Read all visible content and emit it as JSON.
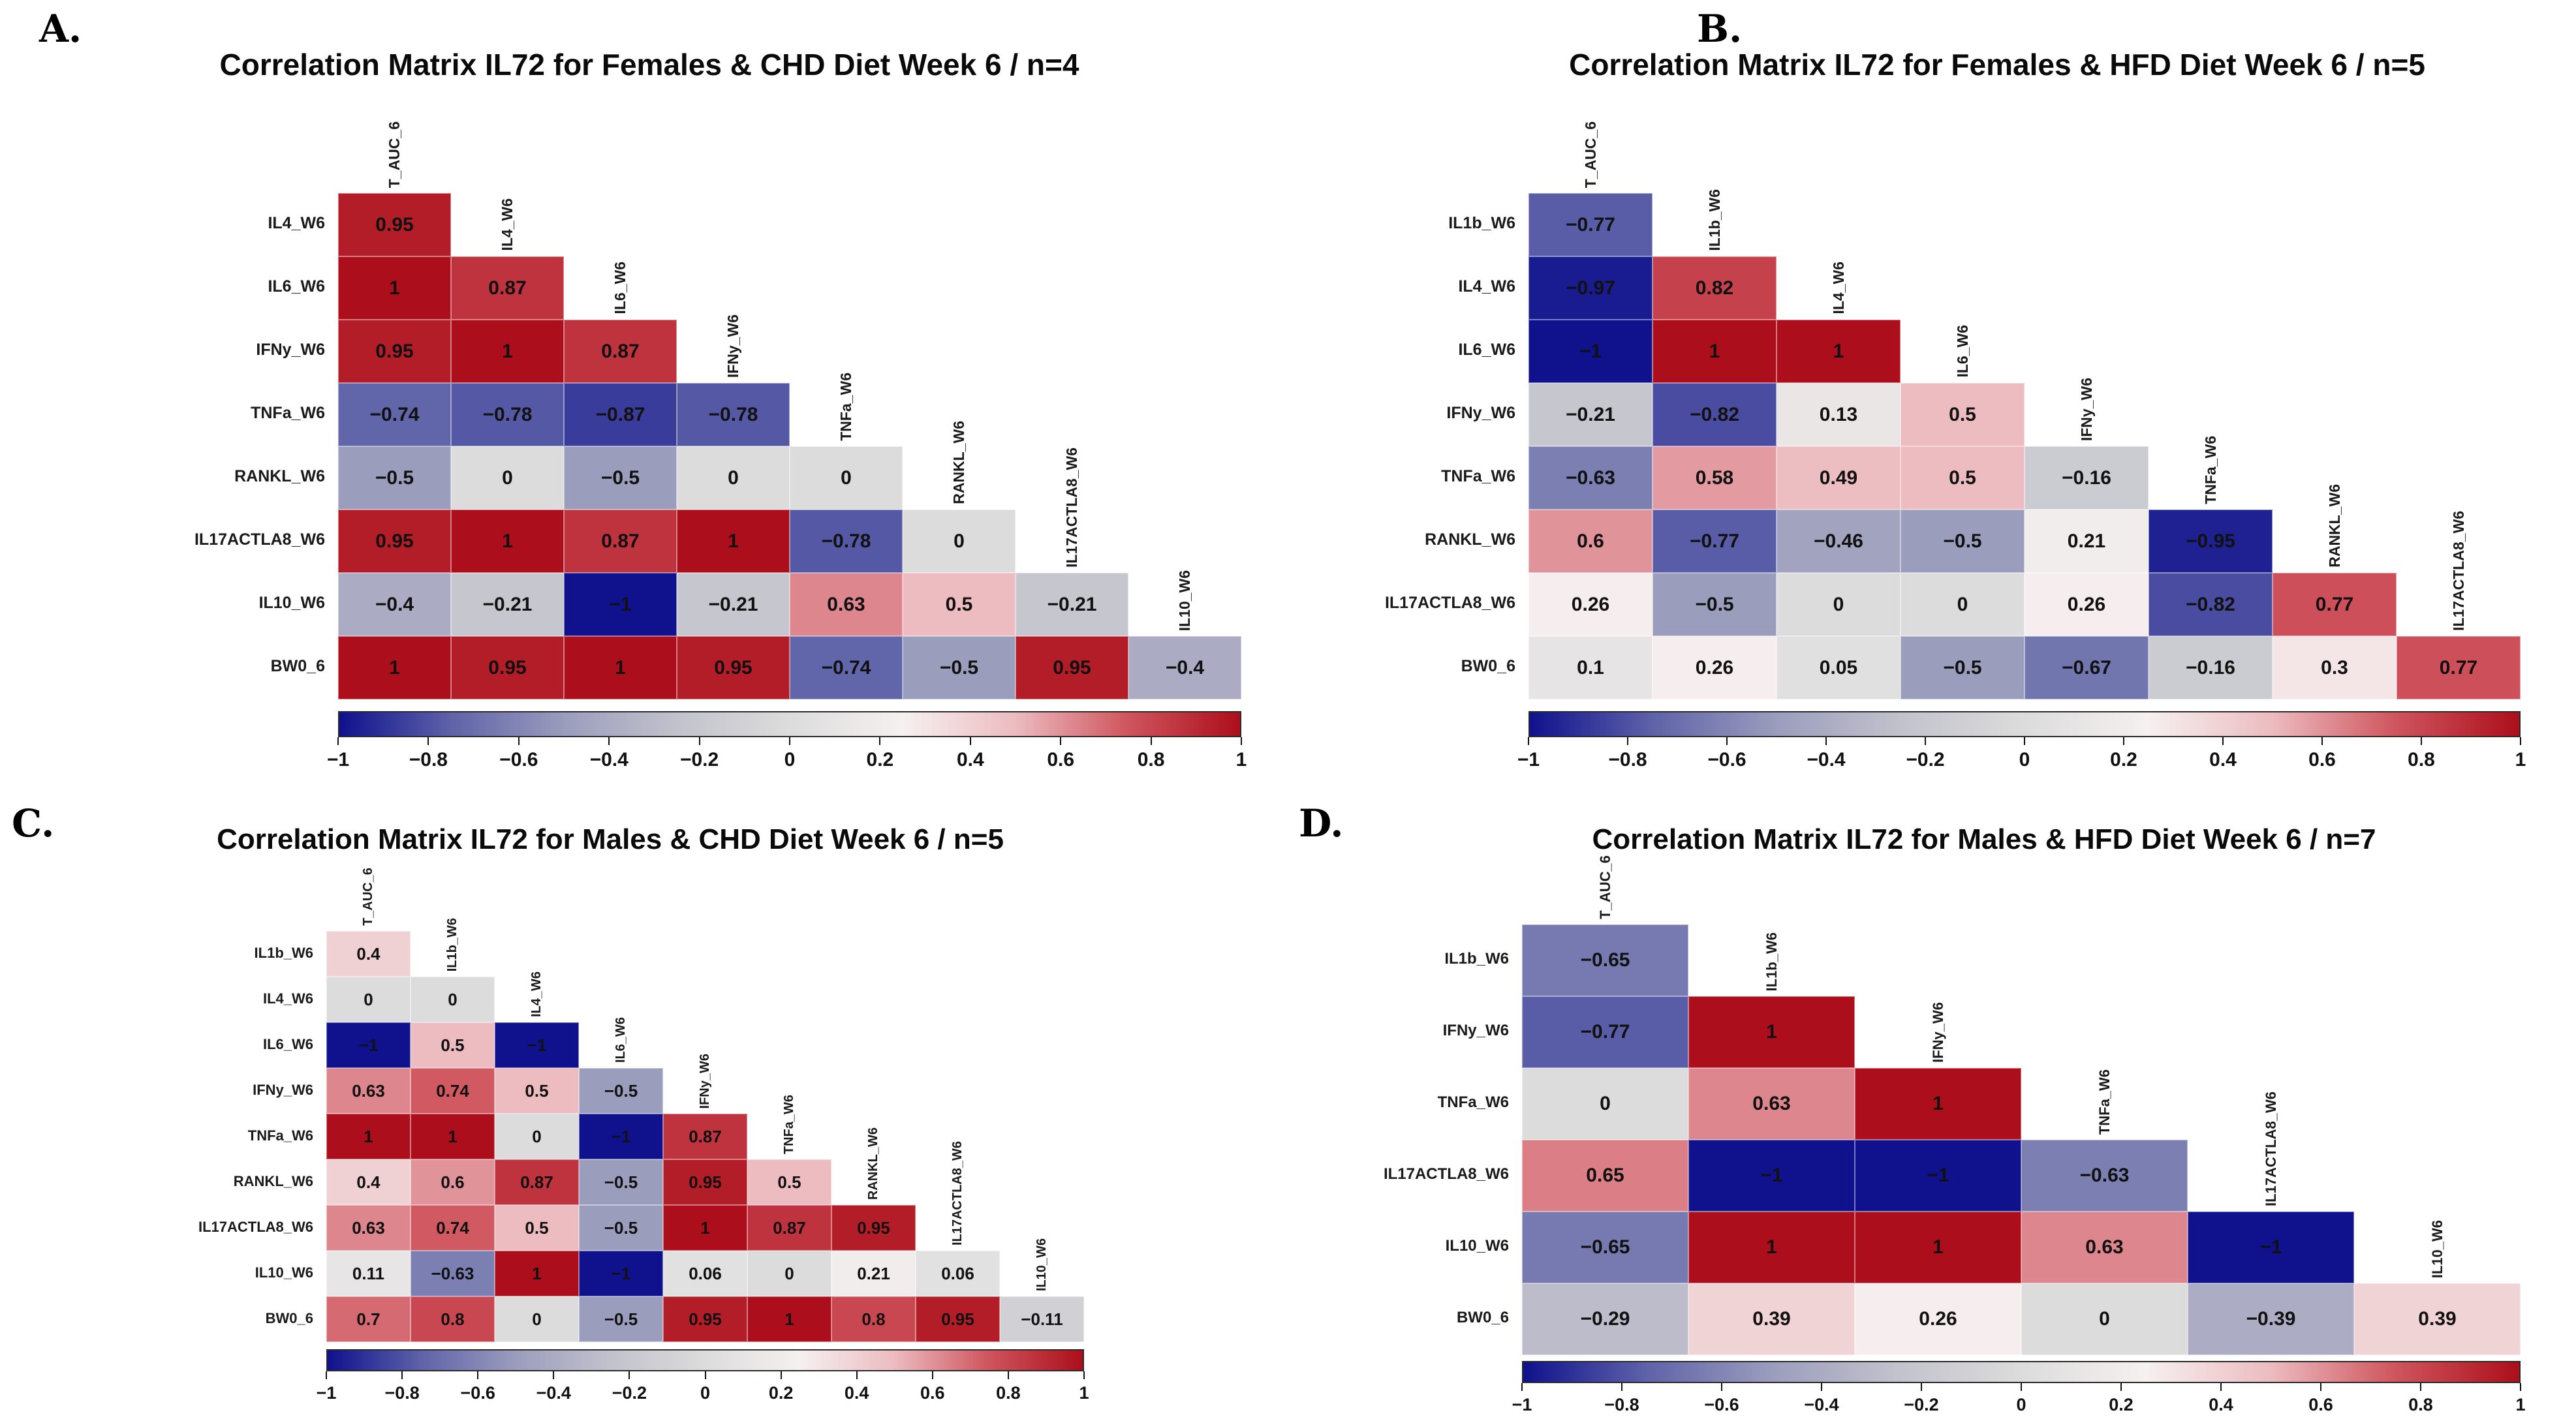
{
  "figure": {
    "background": "#ffffff",
    "description_visible_text_only": true
  },
  "palette": {
    "stops": [
      [
        -1.0,
        "#0f118d"
      ],
      [
        -0.75,
        "#5f63a8"
      ],
      [
        -0.5,
        "#9b9dbd"
      ],
      [
        -0.25,
        "#c2c2cc"
      ],
      [
        0.0,
        "#dcdcdc"
      ],
      [
        0.25,
        "#f6f0f0"
      ],
      [
        0.5,
        "#ecbcc0"
      ],
      [
        0.75,
        "#cf555e"
      ],
      [
        1.0,
        "#ac0f1b"
      ]
    ],
    "negative_end": "#0f118d",
    "midpoint": "#dcdcdc",
    "positive_end": "#ac0f1b"
  },
  "colorbar_ticks": [
    "-1",
    "-0.8",
    "-0.6",
    "-0.4",
    "-0.2",
    "0",
    "0.2",
    "0.4",
    "0.6",
    "0.8",
    "1"
  ],
  "chart_data": [
    {
      "panel_label": "A.",
      "type": "heatmap",
      "subtype": "lower-triangle-correlation-matrix",
      "title": "Correlation Matrix IL72 for Females & CHD Diet Week 6 / n=4",
      "columns": [
        "T_AUC_6",
        "IL4_W6",
        "IL6_W6",
        "IFNy_W6",
        "TNFa_W6",
        "RANKL_W6",
        "IL17ACTLA8_W6",
        "IL10_W6"
      ],
      "rows": [
        "IL4_W6",
        "IL6_W6",
        "IFNy_W6",
        "TNFa_W6",
        "RANKL_W6",
        "IL17ACTLA8_W6",
        "IL10_W6",
        "BW0_6"
      ],
      "values": [
        [
          "0.95"
        ],
        [
          "1",
          "0.87"
        ],
        [
          "0.95",
          "1",
          "0.87"
        ],
        [
          "-0.74",
          "-0.78",
          "-0.87",
          "-0.78"
        ],
        [
          "-0.5",
          "0",
          "-0.5",
          "0",
          "0"
        ],
        [
          "0.95",
          "1",
          "0.87",
          "1",
          "-0.78",
          "0"
        ],
        [
          "-0.4",
          "-0.21",
          "-1",
          "-0.21",
          "0.63",
          "0.5",
          "-0.21"
        ],
        [
          "1",
          "0.95",
          "1",
          "0.95",
          "-0.74",
          "-0.5",
          "0.95",
          "-0.4"
        ]
      ],
      "colorbar_range": [
        -1,
        1
      ]
    },
    {
      "panel_label": "B.",
      "type": "heatmap",
      "subtype": "lower-triangle-correlation-matrix",
      "title": "Correlation Matrix IL72 for Females & HFD Diet Week 6 / n=5",
      "columns": [
        "T_AUC_6",
        "IL1b_W6",
        "IL4_W6",
        "IL6_W6",
        "IFNy_W6",
        "TNFa_W6",
        "RANKL_W6",
        "IL17ACTLA8_W6"
      ],
      "rows": [
        "IL1b_W6",
        "IL4_W6",
        "IL6_W6",
        "IFNy_W6",
        "TNFa_W6",
        "RANKL_W6",
        "IL17ACTLA8_W6",
        "BW0_6"
      ],
      "values": [
        [
          "-0.77"
        ],
        [
          "-0.97",
          "0.82"
        ],
        [
          "-1",
          "1",
          "1"
        ],
        [
          "-0.21",
          "-0.82",
          "0.13",
          "0.5"
        ],
        [
          "-0.63",
          "0.58",
          "0.49",
          "0.5",
          "-0.16"
        ],
        [
          "0.6",
          "-0.77",
          "-0.46",
          "-0.5",
          "0.21",
          "-0.95"
        ],
        [
          "0.26",
          "-0.5",
          "0",
          "0",
          "0.26",
          "-0.82",
          "0.77"
        ],
        [
          "0.1",
          "0.26",
          "0.05",
          "-0.5",
          "-0.67",
          "-0.16",
          "0.3",
          "0.77"
        ]
      ],
      "colorbar_range": [
        -1,
        1
      ]
    },
    {
      "panel_label": "C.",
      "type": "heatmap",
      "subtype": "lower-triangle-correlation-matrix",
      "title": "Correlation Matrix IL72 for Males & CHD Diet Week 6 / n=5",
      "columns": [
        "T_AUC_6",
        "IL1b_W6",
        "IL4_W6",
        "IL6_W6",
        "IFNy_W6",
        "TNFa_W6",
        "RANKL_W6",
        "IL17ACTLA8_W6",
        "IL10_W6"
      ],
      "rows": [
        "IL1b_W6",
        "IL4_W6",
        "IL6_W6",
        "IFNy_W6",
        "TNFa_W6",
        "RANKL_W6",
        "IL17ACTLA8_W6",
        "IL10_W6",
        "BW0_6"
      ],
      "values": [
        [
          "0.4"
        ],
        [
          "0",
          "0"
        ],
        [
          "-1",
          "0.5",
          "-1"
        ],
        [
          "0.63",
          "0.74",
          "0.5",
          "-0.5"
        ],
        [
          "1",
          "1",
          "0",
          "-1",
          "0.87"
        ],
        [
          "0.4",
          "0.6",
          "0.87",
          "-0.5",
          "0.95",
          "0.5"
        ],
        [
          "0.63",
          "0.74",
          "0.5",
          "-0.5",
          "1",
          "0.87",
          "0.95"
        ],
        [
          "0.11",
          "-0.63",
          "1",
          "-1",
          "0.06",
          "0",
          "0.21",
          "0.06"
        ],
        [
          "0.7",
          "0.8",
          "0",
          "-0.5",
          "0.95",
          "1",
          "0.8",
          "0.95",
          "-0.11"
        ]
      ],
      "colorbar_range": [
        -1,
        1
      ]
    },
    {
      "panel_label": "D.",
      "type": "heatmap",
      "subtype": "lower-triangle-correlation-matrix",
      "title": "Correlation Matrix IL72 for Males & HFD Diet Week 6 / n=7",
      "columns": [
        "T_AUC_6",
        "IL1b_W6",
        "IFNy_W6",
        "TNFa_W6",
        "IL17ACTLA8_W6",
        "IL10_W6"
      ],
      "rows": [
        "IL1b_W6",
        "IFNy_W6",
        "TNFa_W6",
        "IL17ACTLA8_W6",
        "IL10_W6",
        "BW0_6"
      ],
      "values": [
        [
          "-0.65"
        ],
        [
          "-0.77",
          "1"
        ],
        [
          "0",
          "0.63",
          "1"
        ],
        [
          "0.65",
          "-1",
          "-1",
          "-0.63"
        ],
        [
          "-0.65",
          "1",
          "1",
          "0.63",
          "-1"
        ],
        [
          "-0.29",
          "0.39",
          "0.26",
          "0",
          "-0.39",
          "0.39"
        ]
      ],
      "colorbar_range": [
        -1,
        1
      ]
    }
  ]
}
